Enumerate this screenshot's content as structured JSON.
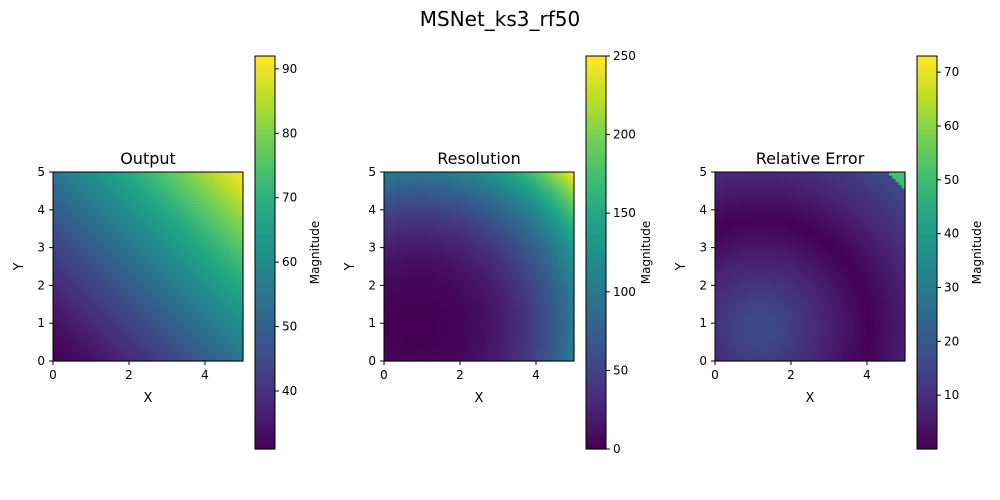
{
  "figure": {
    "title": "MSNet_ks3_rf50"
  },
  "chart_data": [
    {
      "type": "heatmap",
      "title": "Output",
      "xlabel": "X",
      "ylabel": "Y",
      "xlim": [
        0,
        5
      ],
      "ylim": [
        0,
        5
      ],
      "x_ticks": [
        "0",
        "2",
        "4"
      ],
      "y_ticks": [
        "0",
        "1",
        "2",
        "3",
        "4",
        "5"
      ],
      "colormap": "viridis",
      "field": {
        "kind": "sum_power",
        "range": [
          31,
          92
        ],
        "peak": [
          5,
          5
        ],
        "min": [
          0,
          0
        ],
        "exponent": 1.35
      },
      "colorbar": {
        "label": "Magnitude",
        "range": [
          31,
          92
        ],
        "ticks": [
          "40",
          "50",
          "60",
          "70",
          "80",
          "90"
        ]
      }
    },
    {
      "type": "heatmap",
      "title": "Resolution",
      "xlabel": "X",
      "ylabel": "Y",
      "xlim": [
        0,
        5
      ],
      "ylim": [
        0,
        5
      ],
      "x_ticks": [
        "0",
        "2",
        "4"
      ],
      "y_ticks": [
        "0",
        "1",
        "2",
        "3",
        "4",
        "5"
      ],
      "colormap": "viridis",
      "field": {
        "kind": "radial_power",
        "range": [
          0,
          250
        ],
        "center": [
          0.9,
          0.9
        ],
        "exponent": 2.6,
        "max_at": [
          5,
          5
        ]
      },
      "colorbar": {
        "label": "Magnitude",
        "range": [
          0,
          250
        ],
        "ticks": [
          "0",
          "50",
          "100",
          "150",
          "200",
          "250"
        ]
      }
    },
    {
      "type": "heatmap",
      "title": "Relative Error",
      "xlabel": "X",
      "ylabel": "Y",
      "xlim": [
        0,
        5
      ],
      "ylim": [
        0,
        5
      ],
      "x_ticks": [
        "0",
        "2",
        "4"
      ],
      "y_ticks": [
        "0",
        "1",
        "2",
        "3",
        "4",
        "5"
      ],
      "colormap": "viridis",
      "field": {
        "kind": "ring",
        "range": [
          0,
          73
        ],
        "center": [
          1.2,
          0.9
        ],
        "ring_radius": 2.85,
        "base": 16,
        "scale": 6.5
      },
      "colorbar": {
        "label": "Magnitude",
        "range": [
          0,
          73
        ],
        "ticks": [
          "10",
          "20",
          "30",
          "40",
          "50",
          "60",
          "70"
        ]
      }
    }
  ]
}
